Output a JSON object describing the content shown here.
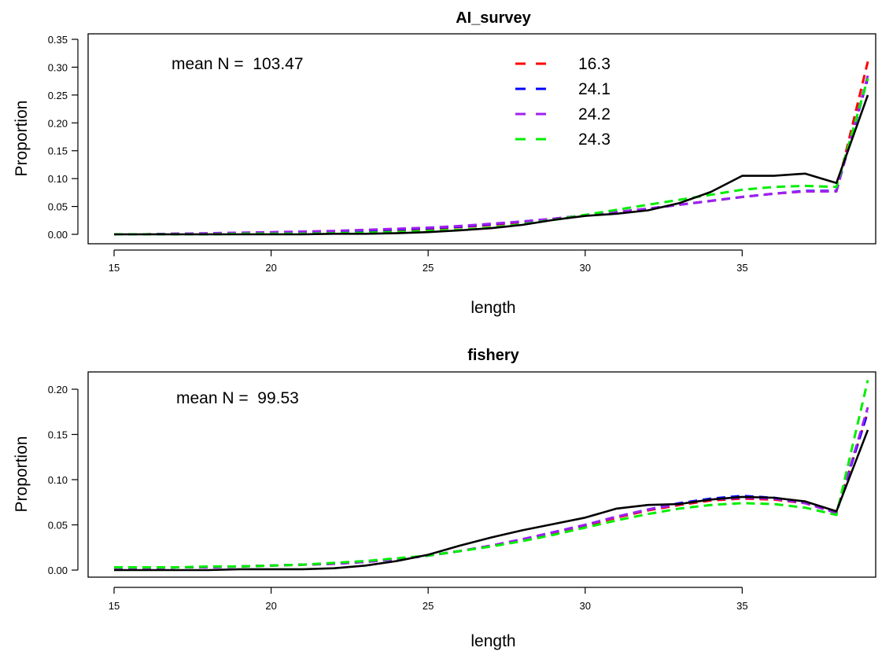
{
  "chart_data": [
    {
      "type": "line",
      "title": "AI_survey",
      "xlabel": "length",
      "ylabel": "Proportion",
      "annotation": "mean N =  103.47",
      "xlim": [
        15,
        39
      ],
      "ylim": [
        0,
        0.35
      ],
      "xticks": [
        15,
        20,
        25,
        30,
        35
      ],
      "yticks": [
        "0.00",
        "0.05",
        "0.10",
        "0.15",
        "0.20",
        "0.25",
        "0.30",
        "0.35"
      ],
      "legend": "top-center",
      "x": [
        15,
        16,
        17,
        18,
        19,
        20,
        21,
        22,
        23,
        24,
        25,
        26,
        27,
        28,
        29,
        30,
        31,
        32,
        33,
        34,
        35,
        36,
        37,
        38,
        39
      ],
      "observed": [
        0.0,
        0.0,
        0.0,
        0.0,
        0.0,
        0.0,
        0.0,
        0.001,
        0.001,
        0.002,
        0.004,
        0.007,
        0.011,
        0.017,
        0.026,
        0.033,
        0.037,
        0.043,
        0.056,
        0.076,
        0.105,
        0.105,
        0.109,
        0.092,
        0.25
      ],
      "series": [
        {
          "name": "16.3",
          "color": "#ff0000",
          "values": [
            0.0,
            0.0,
            0.001,
            0.001,
            0.002,
            0.003,
            0.004,
            0.005,
            0.006,
            0.008,
            0.01,
            0.013,
            0.017,
            0.022,
            0.028,
            0.034,
            0.04,
            0.046,
            0.053,
            0.06,
            0.067,
            0.073,
            0.077,
            0.077,
            0.31
          ]
        },
        {
          "name": "24.1",
          "color": "#0000ff",
          "values": [
            0.0,
            0.0,
            0.001,
            0.001,
            0.002,
            0.003,
            0.004,
            0.005,
            0.007,
            0.009,
            0.011,
            0.014,
            0.018,
            0.023,
            0.028,
            0.034,
            0.04,
            0.046,
            0.053,
            0.06,
            0.067,
            0.073,
            0.078,
            0.078,
            0.28
          ]
        },
        {
          "name": "24.2",
          "color": "#a020f0",
          "values": [
            0.0,
            0.0,
            0.001,
            0.002,
            0.003,
            0.004,
            0.005,
            0.006,
            0.008,
            0.01,
            0.012,
            0.015,
            0.019,
            0.023,
            0.028,
            0.034,
            0.04,
            0.046,
            0.053,
            0.06,
            0.067,
            0.073,
            0.077,
            0.077,
            0.285
          ]
        },
        {
          "name": "24.3",
          "color": "#00ee00",
          "values": [
            0.0,
            0.0,
            0.0,
            0.0,
            0.001,
            0.001,
            0.001,
            0.002,
            0.003,
            0.004,
            0.006,
            0.008,
            0.012,
            0.018,
            0.026,
            0.035,
            0.044,
            0.053,
            0.062,
            0.071,
            0.08,
            0.085,
            0.087,
            0.085,
            0.28
          ]
        }
      ]
    },
    {
      "type": "line",
      "title": "fishery",
      "xlabel": "length",
      "ylabel": "Proportion",
      "annotation": "mean N =  99.53",
      "xlim": [
        15,
        39
      ],
      "ylim": [
        0,
        0.2
      ],
      "xticks": [
        15,
        20,
        25,
        30,
        35
      ],
      "yticks": [
        "0.00",
        "0.05",
        "0.10",
        "0.15",
        "0.20"
      ],
      "x": [
        15,
        16,
        17,
        18,
        19,
        20,
        21,
        22,
        23,
        24,
        25,
        26,
        27,
        28,
        29,
        30,
        31,
        32,
        33,
        34,
        35,
        36,
        37,
        38,
        39
      ],
      "observed": [
        0.0,
        0.0,
        0.0,
        0.0,
        0.001,
        0.001,
        0.001,
        0.002,
        0.005,
        0.01,
        0.017,
        0.027,
        0.036,
        0.044,
        0.051,
        0.058,
        0.068,
        0.072,
        0.073,
        0.078,
        0.081,
        0.08,
        0.076,
        0.065,
        0.155
      ],
      "series": [
        {
          "name": "16.3",
          "color": "#ff0000",
          "values": [
            0.002,
            0.002,
            0.003,
            0.003,
            0.004,
            0.005,
            0.006,
            0.007,
            0.009,
            0.012,
            0.016,
            0.021,
            0.027,
            0.034,
            0.041,
            0.049,
            0.058,
            0.066,
            0.072,
            0.077,
            0.079,
            0.078,
            0.074,
            0.064,
            0.175
          ]
        },
        {
          "name": "24.1",
          "color": "#0000ff",
          "values": [
            0.002,
            0.002,
            0.003,
            0.003,
            0.004,
            0.005,
            0.006,
            0.007,
            0.009,
            0.012,
            0.016,
            0.021,
            0.027,
            0.034,
            0.042,
            0.05,
            0.059,
            0.067,
            0.074,
            0.079,
            0.082,
            0.08,
            0.075,
            0.064,
            0.175
          ]
        },
        {
          "name": "24.2",
          "color": "#a020f0",
          "values": [
            0.002,
            0.002,
            0.003,
            0.003,
            0.004,
            0.005,
            0.006,
            0.007,
            0.009,
            0.012,
            0.016,
            0.021,
            0.027,
            0.034,
            0.042,
            0.05,
            0.059,
            0.067,
            0.073,
            0.078,
            0.08,
            0.079,
            0.074,
            0.063,
            0.18
          ]
        },
        {
          "name": "24.3",
          "color": "#00ee00",
          "values": [
            0.003,
            0.003,
            0.003,
            0.004,
            0.004,
            0.005,
            0.006,
            0.008,
            0.01,
            0.013,
            0.016,
            0.021,
            0.026,
            0.032,
            0.039,
            0.047,
            0.055,
            0.062,
            0.068,
            0.072,
            0.074,
            0.073,
            0.069,
            0.061,
            0.21
          ]
        }
      ]
    }
  ]
}
